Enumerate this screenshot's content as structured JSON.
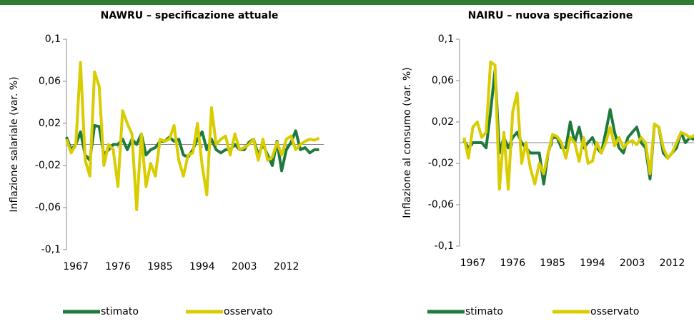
{
  "chart_data": [
    {
      "type": "line",
      "title": "NAWRU – specificazione attuale",
      "y_label": "Inflazione salariale (var. %)",
      "x": [
        1965,
        1966,
        1967,
        1968,
        1969,
        1970,
        1971,
        1972,
        1973,
        1974,
        1975,
        1976,
        1977,
        1978,
        1979,
        1980,
        1981,
        1982,
        1983,
        1984,
        1985,
        1986,
        1987,
        1988,
        1989,
        1990,
        1991,
        1992,
        1993,
        1994,
        1995,
        1996,
        1997,
        1998,
        1999,
        2000,
        2001,
        2002,
        2003,
        2004,
        2005,
        2006,
        2007,
        2008,
        2009,
        2010,
        2011,
        2012,
        2013,
        2014,
        2015,
        2016,
        2017,
        2018,
        2019
      ],
      "series": [
        {
          "name": "stimato",
          "color": "#1e7a3c",
          "values": [
            0.007,
            -0.005,
            0,
            0.012,
            -0.01,
            -0.015,
            0.018,
            0.017,
            -0.01,
            -0.005,
            0,
            0,
            0.005,
            -0.005,
            0.005,
            0,
            0.01,
            -0.01,
            -0.005,
            -0.003,
            0.003,
            0.003,
            0.007,
            0.003,
            0.005,
            -0.01,
            -0.012,
            -0.005,
            0.005,
            0.012,
            -0.005,
            0.005,
            -0.005,
            -0.008,
            -0.005,
            -0.005,
            0,
            -0.005,
            -0.005,
            0.002,
            0.005,
            -0.01,
            0,
            -0.01,
            -0.02,
            0.003,
            -0.025,
            -0.005,
            0.002,
            0.013,
            -0.005,
            -0.003,
            -0.008,
            -0.005,
            -0.005
          ]
        },
        {
          "name": "osservato",
          "color": "#d9cc00",
          "values": [
            0.005,
            -0.008,
            0,
            0.078,
            -0.015,
            -0.03,
            0.069,
            0.055,
            -0.02,
            0,
            -0.005,
            -0.04,
            0.032,
            0.02,
            0.01,
            -0.062,
            0.01,
            -0.04,
            -0.018,
            -0.03,
            0.005,
            0.003,
            0.005,
            0.018,
            -0.015,
            -0.03,
            -0.01,
            -0.008,
            0.02,
            -0.02,
            -0.048,
            0.035,
            0,
            0.005,
            0.008,
            -0.01,
            0.01,
            -0.005,
            -0.003,
            0,
            0.005,
            -0.015,
            0.005,
            -0.015,
            -0.012,
            0.002,
            -0.01,
            0.005,
            0.008,
            -0.005,
            0,
            0.003,
            0.005,
            0.004,
            0.006
          ]
        }
      ],
      "xlim": [
        1965,
        2020
      ],
      "xticks": [
        1967,
        1976,
        1985,
        1994,
        2003,
        2012
      ],
      "ylim": [
        -0.1,
        0.1
      ],
      "yticks": [
        {
          "value": -0.1,
          "label": "-0,1"
        },
        {
          "value": -0.06,
          "label": "-0,06"
        },
        {
          "value": -0.02,
          "label": "-0,02"
        },
        {
          "value": 0.02,
          "label": "0,02"
        },
        {
          "value": 0.06,
          "label": "0,06"
        },
        {
          "value": 0.1,
          "label": "0,1"
        }
      ],
      "legend": "bottom"
    },
    {
      "type": "line",
      "title": "NAIRU – nuova specificazione",
      "y_label": "Inflazione al consumo (var. %)",
      "x": [
        1965,
        1966,
        1967,
        1968,
        1969,
        1970,
        1971,
        1972,
        1973,
        1974,
        1975,
        1976,
        1977,
        1978,
        1979,
        1980,
        1981,
        1982,
        1983,
        1984,
        1985,
        1986,
        1987,
        1988,
        1989,
        1990,
        1991,
        1992,
        1993,
        1994,
        1995,
        1996,
        1997,
        1998,
        1999,
        2000,
        2001,
        2002,
        2003,
        2004,
        2005,
        2006,
        2007,
        2008,
        2009,
        2010,
        2011,
        2012,
        2013,
        2014,
        2015,
        2016,
        2017
      ],
      "series": [
        {
          "name": "stimato",
          "color": "#1e7a3c",
          "values": [
            0.002,
            -0.005,
            0,
            0,
            0,
            -0.005,
            0.03,
            0.07,
            -0.01,
            0.005,
            -0.005,
            0.005,
            0.01,
            0,
            -0.005,
            -0.01,
            -0.01,
            -0.01,
            -0.04,
            -0.01,
            0.005,
            0.005,
            -0.005,
            -0.005,
            0.02,
            0,
            0.015,
            -0.005,
            0,
            0.005,
            -0.005,
            -0.01,
            0.01,
            0.032,
            0.01,
            -0.005,
            -0.01,
            0.005,
            0.01,
            0.015,
            0,
            -0.005,
            -0.035,
            0.018,
            0.015,
            -0.01,
            -0.015,
            -0.01,
            -0.005,
            0.01,
            0,
            0.005,
            0.003
          ]
        },
        {
          "name": "osservato",
          "color": "#d9cc00",
          "values": [
            0.005,
            -0.015,
            0.015,
            0.02,
            0.005,
            0.01,
            0.078,
            0.075,
            -0.045,
            0.01,
            -0.045,
            0.03,
            0.048,
            -0.02,
            0,
            -0.025,
            -0.04,
            -0.02,
            -0.03,
            -0.01,
            0.008,
            0.006,
            0,
            -0.015,
            0.005,
            0,
            -0.018,
            0.005,
            -0.02,
            -0.018,
            0,
            -0.01,
            0,
            0.015,
            -0.003,
            0.005,
            -0.005,
            0,
            0.002,
            -0.002,
            0.005,
            0,
            -0.03,
            0.018,
            0.015,
            -0.005,
            -0.015,
            -0.01,
            0,
            0.01,
            0.008,
            0.005,
            0.007
          ]
        }
      ],
      "xlim": [
        1964,
        2020
      ],
      "xticks": [
        1967,
        1976,
        1985,
        1994,
        2003,
        2012
      ],
      "ylim": [
        -0.1,
        0.1
      ],
      "yticks": [
        {
          "value": -0.1,
          "label": "-0,1"
        },
        {
          "value": -0.06,
          "label": "-0,06"
        },
        {
          "value": -0.02,
          "label": "-0,02"
        },
        {
          "value": 0.02,
          "label": "0,02"
        },
        {
          "value": 0.06,
          "label": "0,06"
        },
        {
          "value": 0.1,
          "label": "0,1"
        }
      ],
      "legend": "bottom"
    }
  ]
}
